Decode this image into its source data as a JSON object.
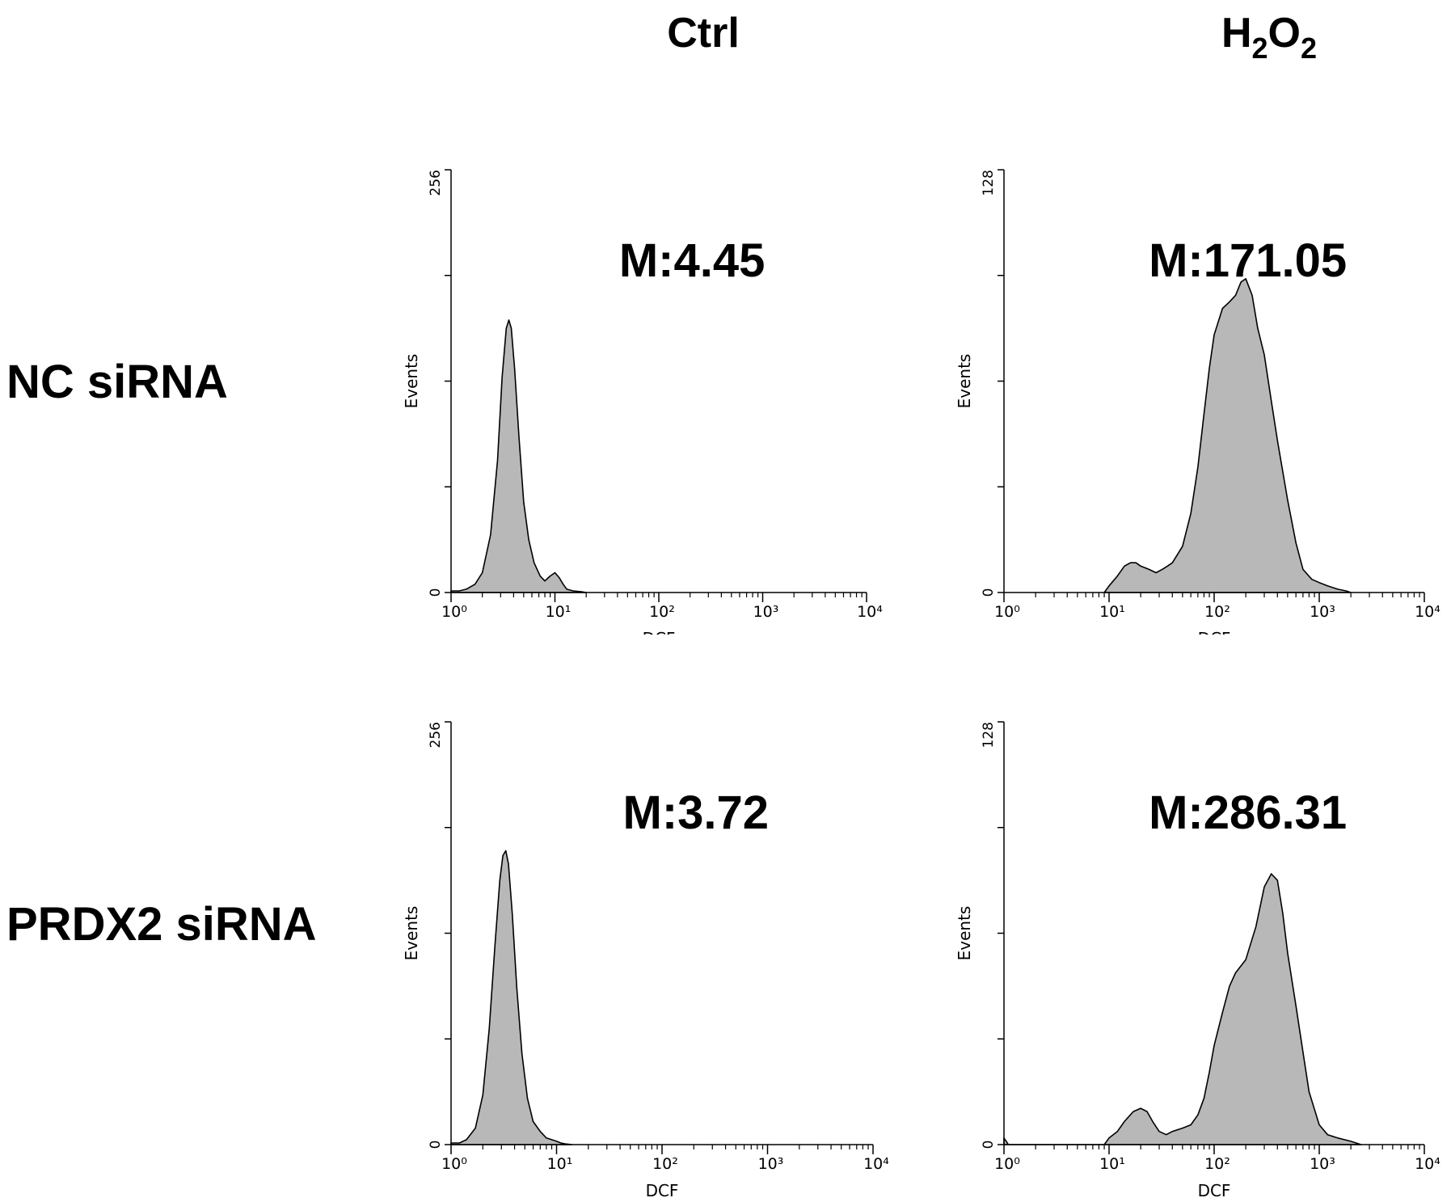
{
  "figure": {
    "column_headers": [
      {
        "text": "Ctrl",
        "main": "Ctrl",
        "sub": "",
        "tail": ""
      },
      {
        "text": "H2O2",
        "main": "H",
        "sub": "2",
        "tail": "O",
        "sub2": "2"
      }
    ],
    "row_labels": [
      "NC siRNA",
      "PRDX2 siRNA"
    ]
  },
  "chart_data": [
    {
      "type": "area",
      "row": "NC siRNA",
      "column": "Ctrl",
      "annotation": "M:4.45",
      "mean": 4.45,
      "xlabel": "DCF",
      "ylabel": "Events",
      "x_scale": "log",
      "xlim": [
        1,
        10000
      ],
      "ylim": [
        0,
        256
      ],
      "x_tick_labels": [
        "10⁰",
        "10¹",
        "10²",
        "10³",
        "10⁴"
      ],
      "y_tick_labels": [
        "0",
        "256"
      ],
      "fill_color": "#b8b8b8",
      "x": [
        1,
        1.2,
        1.4,
        1.7,
        2.0,
        2.4,
        2.8,
        3.1,
        3.4,
        3.6,
        3.8,
        4.1,
        4.5,
        5.0,
        5.6,
        6.3,
        7.2,
        8.0,
        9.0,
        10,
        11,
        12,
        13,
        15,
        18,
        20
      ],
      "y": [
        1,
        1,
        2,
        5,
        12,
        35,
        80,
        130,
        160,
        165,
        160,
        135,
        95,
        55,
        32,
        18,
        10,
        7,
        10,
        12,
        9,
        5,
        2,
        1,
        0.5,
        0
      ]
    },
    {
      "type": "area",
      "row": "NC siRNA",
      "column": "H2O2",
      "annotation": "M:171.05",
      "mean": 171.05,
      "xlabel": "DCF",
      "ylabel": "Events",
      "x_scale": "log",
      "xlim": [
        1,
        10000
      ],
      "ylim": [
        0,
        128
      ],
      "x_tick_labels": [
        "10⁰",
        "10¹",
        "10²",
        "10³",
        "10⁴"
      ],
      "y_tick_labels": [
        "0",
        "128"
      ],
      "fill_color": "#b8b8b8",
      "x": [
        9,
        10,
        12,
        14,
        16,
        18,
        20,
        24,
        28,
        32,
        36,
        40,
        50,
        60,
        70,
        80,
        90,
        100,
        120,
        140,
        160,
        180,
        200,
        230,
        260,
        300,
        350,
        400,
        500,
        600,
        700,
        850,
        1000,
        1200,
        1500,
        1800,
        2000
      ],
      "y": [
        0,
        2,
        5,
        8,
        9,
        9,
        8,
        7,
        6,
        7,
        8,
        9,
        14,
        24,
        38,
        54,
        68,
        78,
        86,
        88,
        90,
        94,
        95,
        90,
        80,
        72,
        58,
        46,
        28,
        15,
        7,
        4,
        3,
        2,
        1,
        0.5,
        0
      ]
    },
    {
      "type": "area",
      "row": "PRDX2 siRNA",
      "column": "Ctrl",
      "annotation": "M:3.72",
      "mean": 3.72,
      "xlabel": "DCF",
      "ylabel": "Events",
      "x_scale": "log",
      "xlim": [
        1,
        10000
      ],
      "ylim": [
        0,
        256
      ],
      "x_tick_labels": [
        "10⁰",
        "10¹",
        "10²",
        "10³",
        "10⁴"
      ],
      "y_tick_labels": [
        "0",
        "256"
      ],
      "fill_color": "#b8b8b8",
      "x": [
        1,
        1.2,
        1.4,
        1.7,
        2.0,
        2.3,
        2.6,
        2.9,
        3.1,
        3.3,
        3.5,
        3.8,
        4.2,
        4.7,
        5.3,
        6.0,
        7.0,
        8.0,
        9.0,
        10,
        11,
        12,
        14
      ],
      "y": [
        1,
        1,
        3,
        10,
        30,
        70,
        120,
        160,
        175,
        178,
        170,
        140,
        95,
        55,
        28,
        14,
        8,
        4,
        3,
        2,
        1,
        0.5,
        0
      ]
    },
    {
      "type": "area",
      "row": "PRDX2 siRNA",
      "column": "H2O2",
      "annotation": "M:286.31",
      "mean": 286.31,
      "xlabel": "DCF",
      "ylabel": "Events",
      "x_scale": "log",
      "xlim": [
        1,
        10000
      ],
      "ylim": [
        0,
        128
      ],
      "x_tick_labels": [
        "10⁰",
        "10¹",
        "10²",
        "10³",
        "10⁴"
      ],
      "y_tick_labels": [
        "0",
        "128"
      ],
      "fill_color": "#b8b8b8",
      "x": [
        1,
        1.05,
        1.1,
        9,
        10,
        12,
        14,
        17,
        20,
        23,
        26,
        30,
        35,
        40,
        50,
        60,
        70,
        80,
        90,
        100,
        120,
        140,
        160,
        200,
        250,
        300,
        350,
        400,
        450,
        500,
        600,
        700,
        800,
        1000,
        1200,
        1500,
        2000,
        2500
      ],
      "y": [
        2,
        1,
        0,
        0,
        2,
        4,
        7,
        10,
        11,
        10,
        7,
        4,
        3,
        4,
        5,
        6,
        9,
        14,
        22,
        30,
        40,
        48,
        52,
        56,
        66,
        78,
        82,
        80,
        70,
        58,
        42,
        28,
        16,
        6,
        3,
        2,
        1,
        0
      ]
    }
  ]
}
